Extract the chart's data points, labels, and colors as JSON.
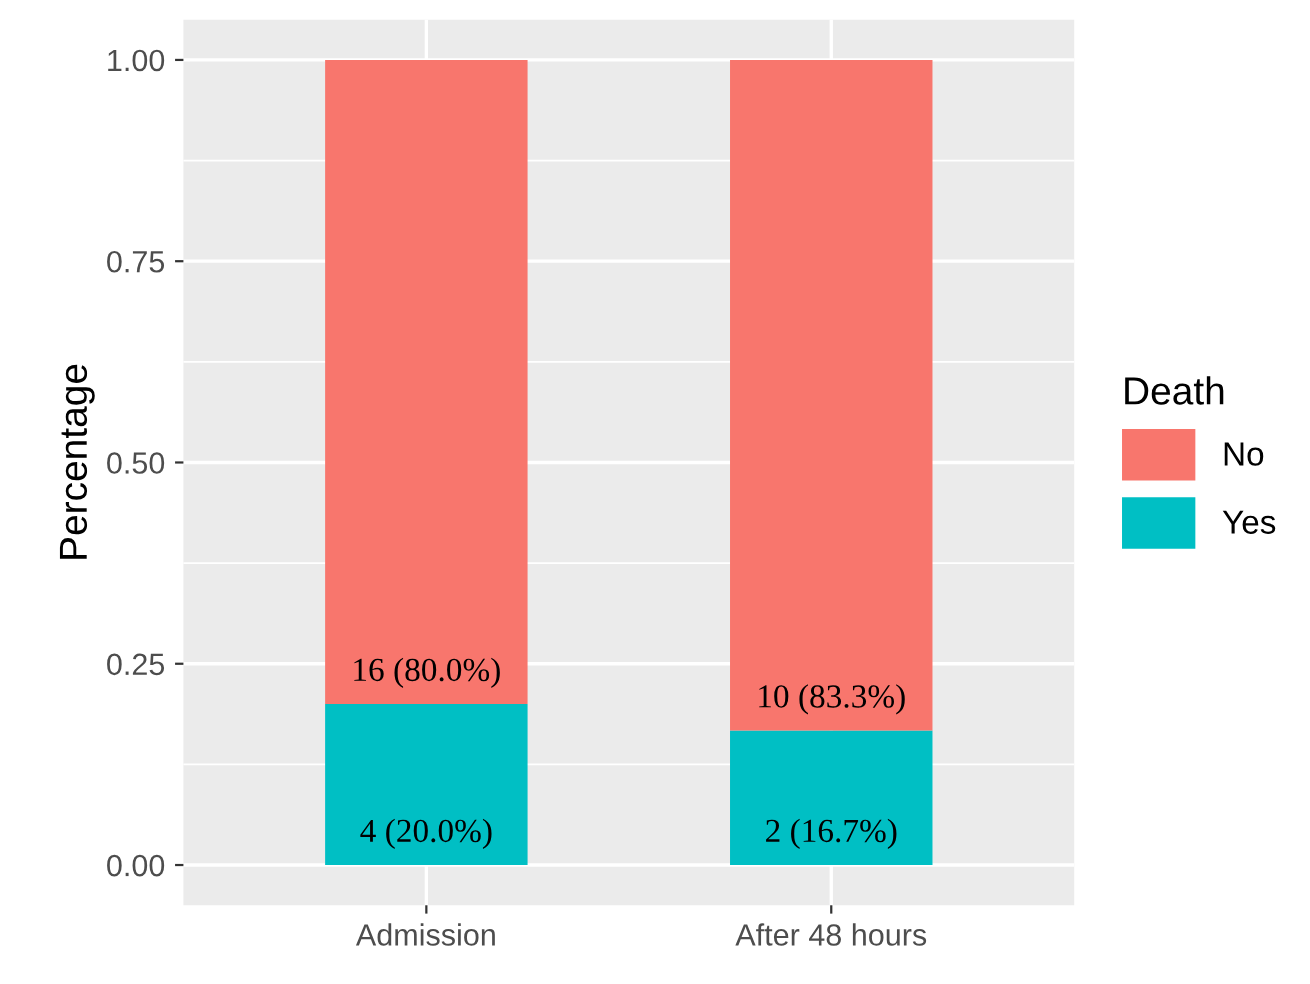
{
  "chart_data": {
    "type": "bar",
    "stacked": true,
    "ylabel": "Percentage",
    "legend_title": "Death",
    "categories": [
      "Admission",
      "After 48 hours"
    ],
    "series": [
      {
        "name": "Yes",
        "color": "#00bfc4",
        "values": [
          0.2,
          0.167
        ],
        "value_labels": [
          "4 (20.0%)",
          "2 (16.7%)"
        ]
      },
      {
        "name": "No",
        "color": "#f8766d",
        "values": [
          0.8,
          0.833
        ],
        "value_labels": [
          "16 (80.0%)",
          "10 (83.3%)"
        ]
      }
    ],
    "ylim": [
      -0.05,
      1.05
    ],
    "yticks": [
      {
        "value": 0,
        "label": "0.00"
      },
      {
        "value": 0.25,
        "label": "0.25"
      },
      {
        "value": 0.5,
        "label": "0.50"
      },
      {
        "value": 0.75,
        "label": "0.75"
      },
      {
        "value": 1,
        "label": "1.00"
      }
    ],
    "grid": true,
    "legend": "right"
  }
}
